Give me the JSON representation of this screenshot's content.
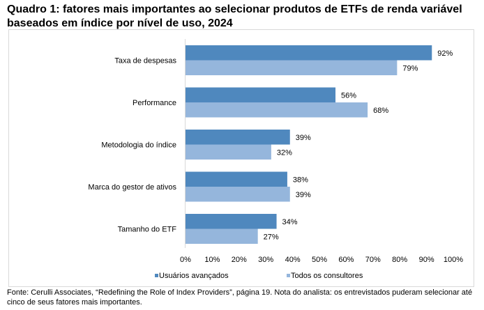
{
  "title": "Quadro 1: fatores mais importantes ao selecionar produtos de ETFs de renda variável baseados em índice por nível de uso, 2024",
  "footer": "Fonte: Cerulli Associates, “Redefining the Role of Index Providers”, página 19. Nota do analista: os entrevistados puderam selecionar até cinco de seus fatores mais importantes.",
  "chart_data": {
    "type": "bar",
    "orientation": "horizontal",
    "categories": [
      "Taxa de despesas",
      "Performance",
      "Metodologia do índice",
      "Marca do gestor de ativos",
      "Tamanho do ETF"
    ],
    "series": [
      {
        "name": "Usuários avançados",
        "values": [
          92,
          56,
          39,
          38,
          34
        ],
        "labels": [
          "92%",
          "56%",
          "39%",
          "38%",
          "34%"
        ],
        "color": "#4F88BE"
      },
      {
        "name": "Todos os consultores",
        "values": [
          79,
          68,
          32,
          39,
          27
        ],
        "labels": [
          "79%",
          "68%",
          "32%",
          "39%",
          "27%"
        ],
        "color": "#95B6DC"
      }
    ],
    "xlim": [
      0,
      100
    ],
    "xticks": [
      "0%",
      "10%",
      "20%",
      "30%",
      "40%",
      "50%",
      "60%",
      "70%",
      "80%",
      "90%",
      "100%"
    ],
    "grid": false,
    "legend_position": "bottom"
  }
}
